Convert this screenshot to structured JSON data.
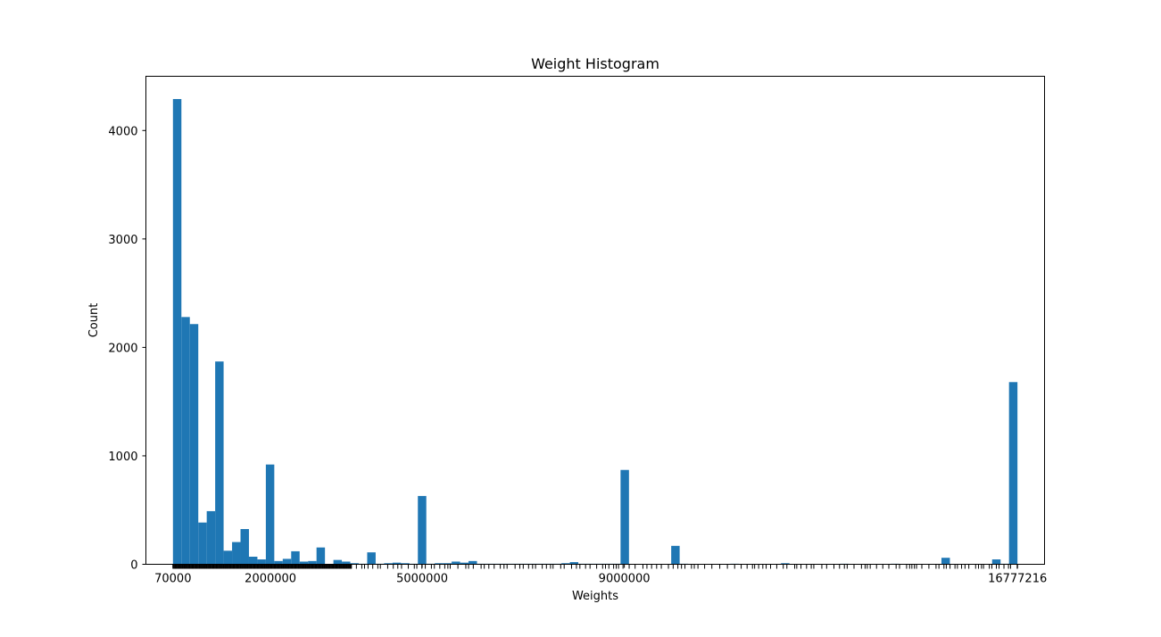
{
  "chart_data": {
    "type": "bar",
    "title": "Weight Histogram",
    "xlabel": "Weights",
    "ylabel": "Count",
    "x_range": [
      70000,
      16777216
    ],
    "xlim": [
      -465000,
      17313000
    ],
    "ylim": [
      0,
      4500
    ],
    "x_ticks": [
      {
        "value": 70000,
        "label": "70000"
      },
      {
        "value": 2000000,
        "label": "2000000"
      },
      {
        "value": 5000000,
        "label": "5000000"
      },
      {
        "value": 9000000,
        "label": "9000000"
      },
      {
        "value": 16777216,
        "label": "16777216"
      }
    ],
    "y_ticks": [
      {
        "value": 0,
        "label": "0"
      },
      {
        "value": 1000,
        "label": "1000"
      },
      {
        "value": 2000,
        "label": "2000"
      },
      {
        "value": 3000,
        "label": "3000"
      },
      {
        "value": 4000,
        "label": "4000"
      }
    ],
    "bin_count": 100,
    "values": [
      4290,
      2280,
      2215,
      385,
      490,
      1870,
      125,
      205,
      325,
      70,
      45,
      920,
      30,
      50,
      120,
      25,
      30,
      155,
      0,
      40,
      25,
      10,
      5,
      110,
      5,
      10,
      15,
      10,
      5,
      630,
      5,
      10,
      10,
      25,
      15,
      30,
      5,
      5,
      5,
      5,
      5,
      5,
      5,
      5,
      5,
      5,
      10,
      20,
      5,
      5,
      5,
      5,
      5,
      870,
      0,
      0,
      0,
      0,
      0,
      170,
      5,
      0,
      0,
      0,
      0,
      0,
      5,
      0,
      0,
      0,
      0,
      0,
      10,
      0,
      0,
      0,
      0,
      0,
      0,
      5,
      0,
      0,
      0,
      0,
      0,
      5,
      0,
      0,
      0,
      0,
      0,
      60,
      0,
      0,
      0,
      0,
      0,
      45,
      5,
      1680
    ],
    "rug": true,
    "grid": false,
    "color": "#1f77b4"
  }
}
